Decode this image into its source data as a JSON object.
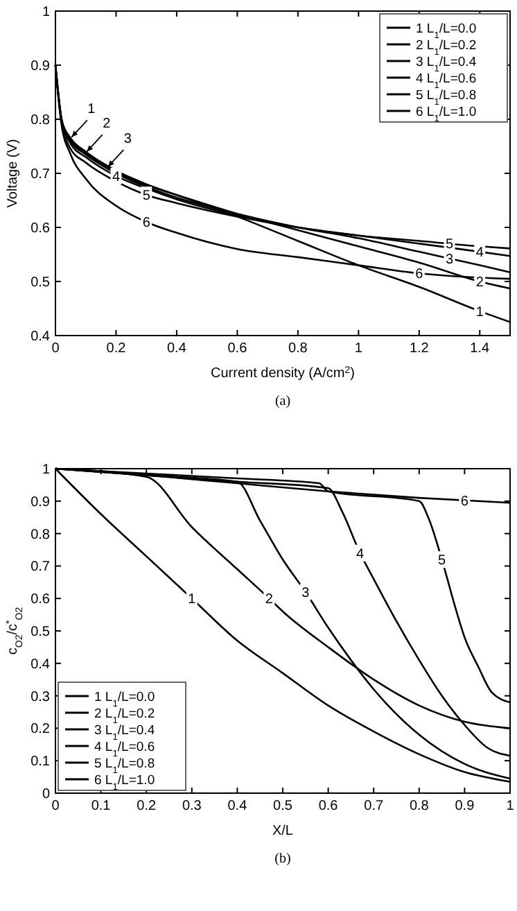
{
  "chart_data": [
    {
      "type": "line",
      "xlabel": "Current density (A/cm$^{2}$)",
      "ylabel": "Voltage (V)",
      "xlim": [
        0,
        1.5
      ],
      "ylim": [
        0.4,
        1
      ],
      "xticks": [
        0,
        0.2,
        0.4,
        0.6,
        0.8,
        1,
        1.2,
        1.4
      ],
      "yticks": [
        0.4,
        0.5,
        0.6,
        0.7,
        0.8,
        0.9,
        1
      ],
      "grid": false,
      "legend": "top right",
      "line_style": "solid",
      "x": [
        0,
        0.02,
        0.05,
        0.1,
        0.2,
        0.3,
        0.4,
        0.6,
        0.8,
        1.0,
        1.2,
        1.4,
        1.5
      ],
      "series": [
        {
          "name": "1 L$_{1}$/L=0.0",
          "color": "#000000",
          "values": [
            0.9,
            0.8,
            0.765,
            0.74,
            0.705,
            0.68,
            0.66,
            0.62,
            0.575,
            0.53,
            0.49,
            0.445,
            0.425
          ]
        },
        {
          "name": "2 L$_{1}$/L=0.2",
          "color": "#000000",
          "values": [
            0.9,
            0.8,
            0.763,
            0.738,
            0.703,
            0.678,
            0.66,
            0.625,
            0.595,
            0.565,
            0.535,
            0.5,
            0.487
          ]
        },
        {
          "name": "3 L$_{1}$/L=0.4",
          "color": "#000000",
          "values": [
            0.9,
            0.8,
            0.76,
            0.735,
            0.7,
            0.675,
            0.655,
            0.625,
            0.6,
            0.58,
            0.555,
            0.53,
            0.517
          ]
        },
        {
          "name": "4 L$_{1}$/L=0.6",
          "color": "#000000",
          "values": [
            0.9,
            0.8,
            0.755,
            0.73,
            0.695,
            0.672,
            0.652,
            0.622,
            0.6,
            0.585,
            0.57,
            0.555,
            0.547
          ]
        },
        {
          "name": "5 L$_{1}$/L=0.8",
          "color": "#000000",
          "values": [
            0.9,
            0.8,
            0.745,
            0.72,
            0.685,
            0.66,
            0.645,
            0.62,
            0.6,
            0.585,
            0.575,
            0.565,
            0.561
          ]
        },
        {
          "name": "6 L$_{1}$/L=1.0",
          "color": "#000000",
          "values": [
            0.9,
            0.79,
            0.735,
            0.69,
            0.64,
            0.61,
            0.59,
            0.56,
            0.545,
            0.53,
            0.515,
            0.507,
            0.505
          ]
        }
      ],
      "annotations": [
        {
          "text": "1",
          "x": 0.05,
          "y": 0.765
        },
        {
          "text": "2",
          "x": 0.1,
          "y": 0.738
        },
        {
          "text": "3",
          "x": 0.17,
          "y": 0.71
        },
        {
          "text": "4",
          "x": 0.2,
          "y": 0.695
        },
        {
          "text": "5",
          "x": 0.3,
          "y": 0.66
        },
        {
          "text": "6",
          "x": 0.3,
          "y": 0.61
        },
        {
          "text": "5",
          "x": 1.3,
          "y": 0.57
        },
        {
          "text": "4",
          "x": 1.4,
          "y": 0.555
        },
        {
          "text": "3",
          "x": 1.3,
          "y": 0.5425
        },
        {
          "text": "6",
          "x": 1.2,
          "y": 0.515
        },
        {
          "text": "2",
          "x": 1.4,
          "y": 0.5
        },
        {
          "text": "1",
          "x": 1.4,
          "y": 0.445
        },
        "(a)"
      ]
    },
    {
      "type": "line",
      "xlabel": "X/L",
      "ylabel": "c$_{O2}$/c$^{*}$$_{O2}$",
      "xlim": [
        0,
        1
      ],
      "ylim": [
        0,
        1
      ],
      "xticks": [
        0,
        0.1,
        0.2,
        0.3,
        0.4,
        0.5,
        0.6,
        0.7,
        0.8,
        0.9,
        1
      ],
      "yticks": [
        0,
        0.1,
        0.2,
        0.3,
        0.4,
        0.5,
        0.6,
        0.7,
        0.8,
        0.9,
        1
      ],
      "grid": false,
      "legend": "bottom left",
      "line_style": "solid",
      "series": [
        {
          "name": "1 L$_{1}$/L=0.0",
          "color": "#000000",
          "x": [
            0,
            0.1,
            0.2,
            0.3,
            0.4,
            0.5,
            0.6,
            0.7,
            0.8,
            0.9,
            1
          ],
          "values": [
            1,
            0.86,
            0.73,
            0.6,
            0.47,
            0.37,
            0.27,
            0.19,
            0.12,
            0.065,
            0.035
          ]
        },
        {
          "name": "2 L$_{1}$/L=0.2",
          "color": "#000000",
          "x": [
            0,
            0.2,
            0.3,
            0.4,
            0.47,
            0.5,
            0.6,
            0.7,
            0.8,
            0.9,
            1
          ],
          "values": [
            1,
            0.975,
            0.82,
            0.69,
            0.6,
            0.56,
            0.45,
            0.35,
            0.27,
            0.22,
            0.2
          ]
        },
        {
          "name": "3 L$_{1}$/L=0.4",
          "color": "#000000",
          "x": [
            0,
            0.2,
            0.4,
            0.45,
            0.5,
            0.55,
            0.6,
            0.65,
            0.7,
            0.8,
            0.9,
            1
          ],
          "values": [
            1,
            0.98,
            0.96,
            0.84,
            0.72,
            0.62,
            0.51,
            0.41,
            0.32,
            0.18,
            0.09,
            0.045
          ]
        },
        {
          "name": "4 L$_{1}$/L=0.6",
          "color": "#000000",
          "x": [
            0,
            0.2,
            0.4,
            0.6,
            0.63,
            0.67,
            0.7,
            0.75,
            0.8,
            0.85,
            0.9,
            0.95,
            1
          ],
          "values": [
            1,
            0.98,
            0.96,
            0.94,
            0.87,
            0.74,
            0.66,
            0.53,
            0.41,
            0.3,
            0.21,
            0.14,
            0.115
          ]
        },
        {
          "name": "5 L$_{1}$/L=0.8",
          "color": "#000000",
          "x": [
            0,
            0.2,
            0.4,
            0.58,
            0.6,
            0.8,
            0.82,
            0.85,
            0.88,
            0.9,
            0.93,
            0.96,
            1
          ],
          "values": [
            1,
            0.985,
            0.97,
            0.955,
            0.93,
            0.9,
            0.85,
            0.72,
            0.57,
            0.48,
            0.39,
            0.31,
            0.28
          ]
        },
        {
          "name": "6 L$_{1}$/L=1.0",
          "color": "#000000",
          "x": [
            0,
            0.2,
            0.4,
            0.6,
            0.8,
            1
          ],
          "values": [
            1,
            0.98,
            0.955,
            0.93,
            0.91,
            0.895
          ]
        }
      ],
      "annotations": [
        {
          "text": "1",
          "x": 0.3,
          "y": 0.6
        },
        {
          "text": "2",
          "x": 0.47,
          "y": 0.6
        },
        {
          "text": "3",
          "x": 0.55,
          "y": 0.62
        },
        {
          "text": "4",
          "x": 0.67,
          "y": 0.74
        },
        {
          "text": "5",
          "x": 0.85,
          "y": 0.72
        },
        {
          "text": "6",
          "x": 0.9,
          "y": 0.9025
        },
        "(b)"
      ]
    }
  ]
}
